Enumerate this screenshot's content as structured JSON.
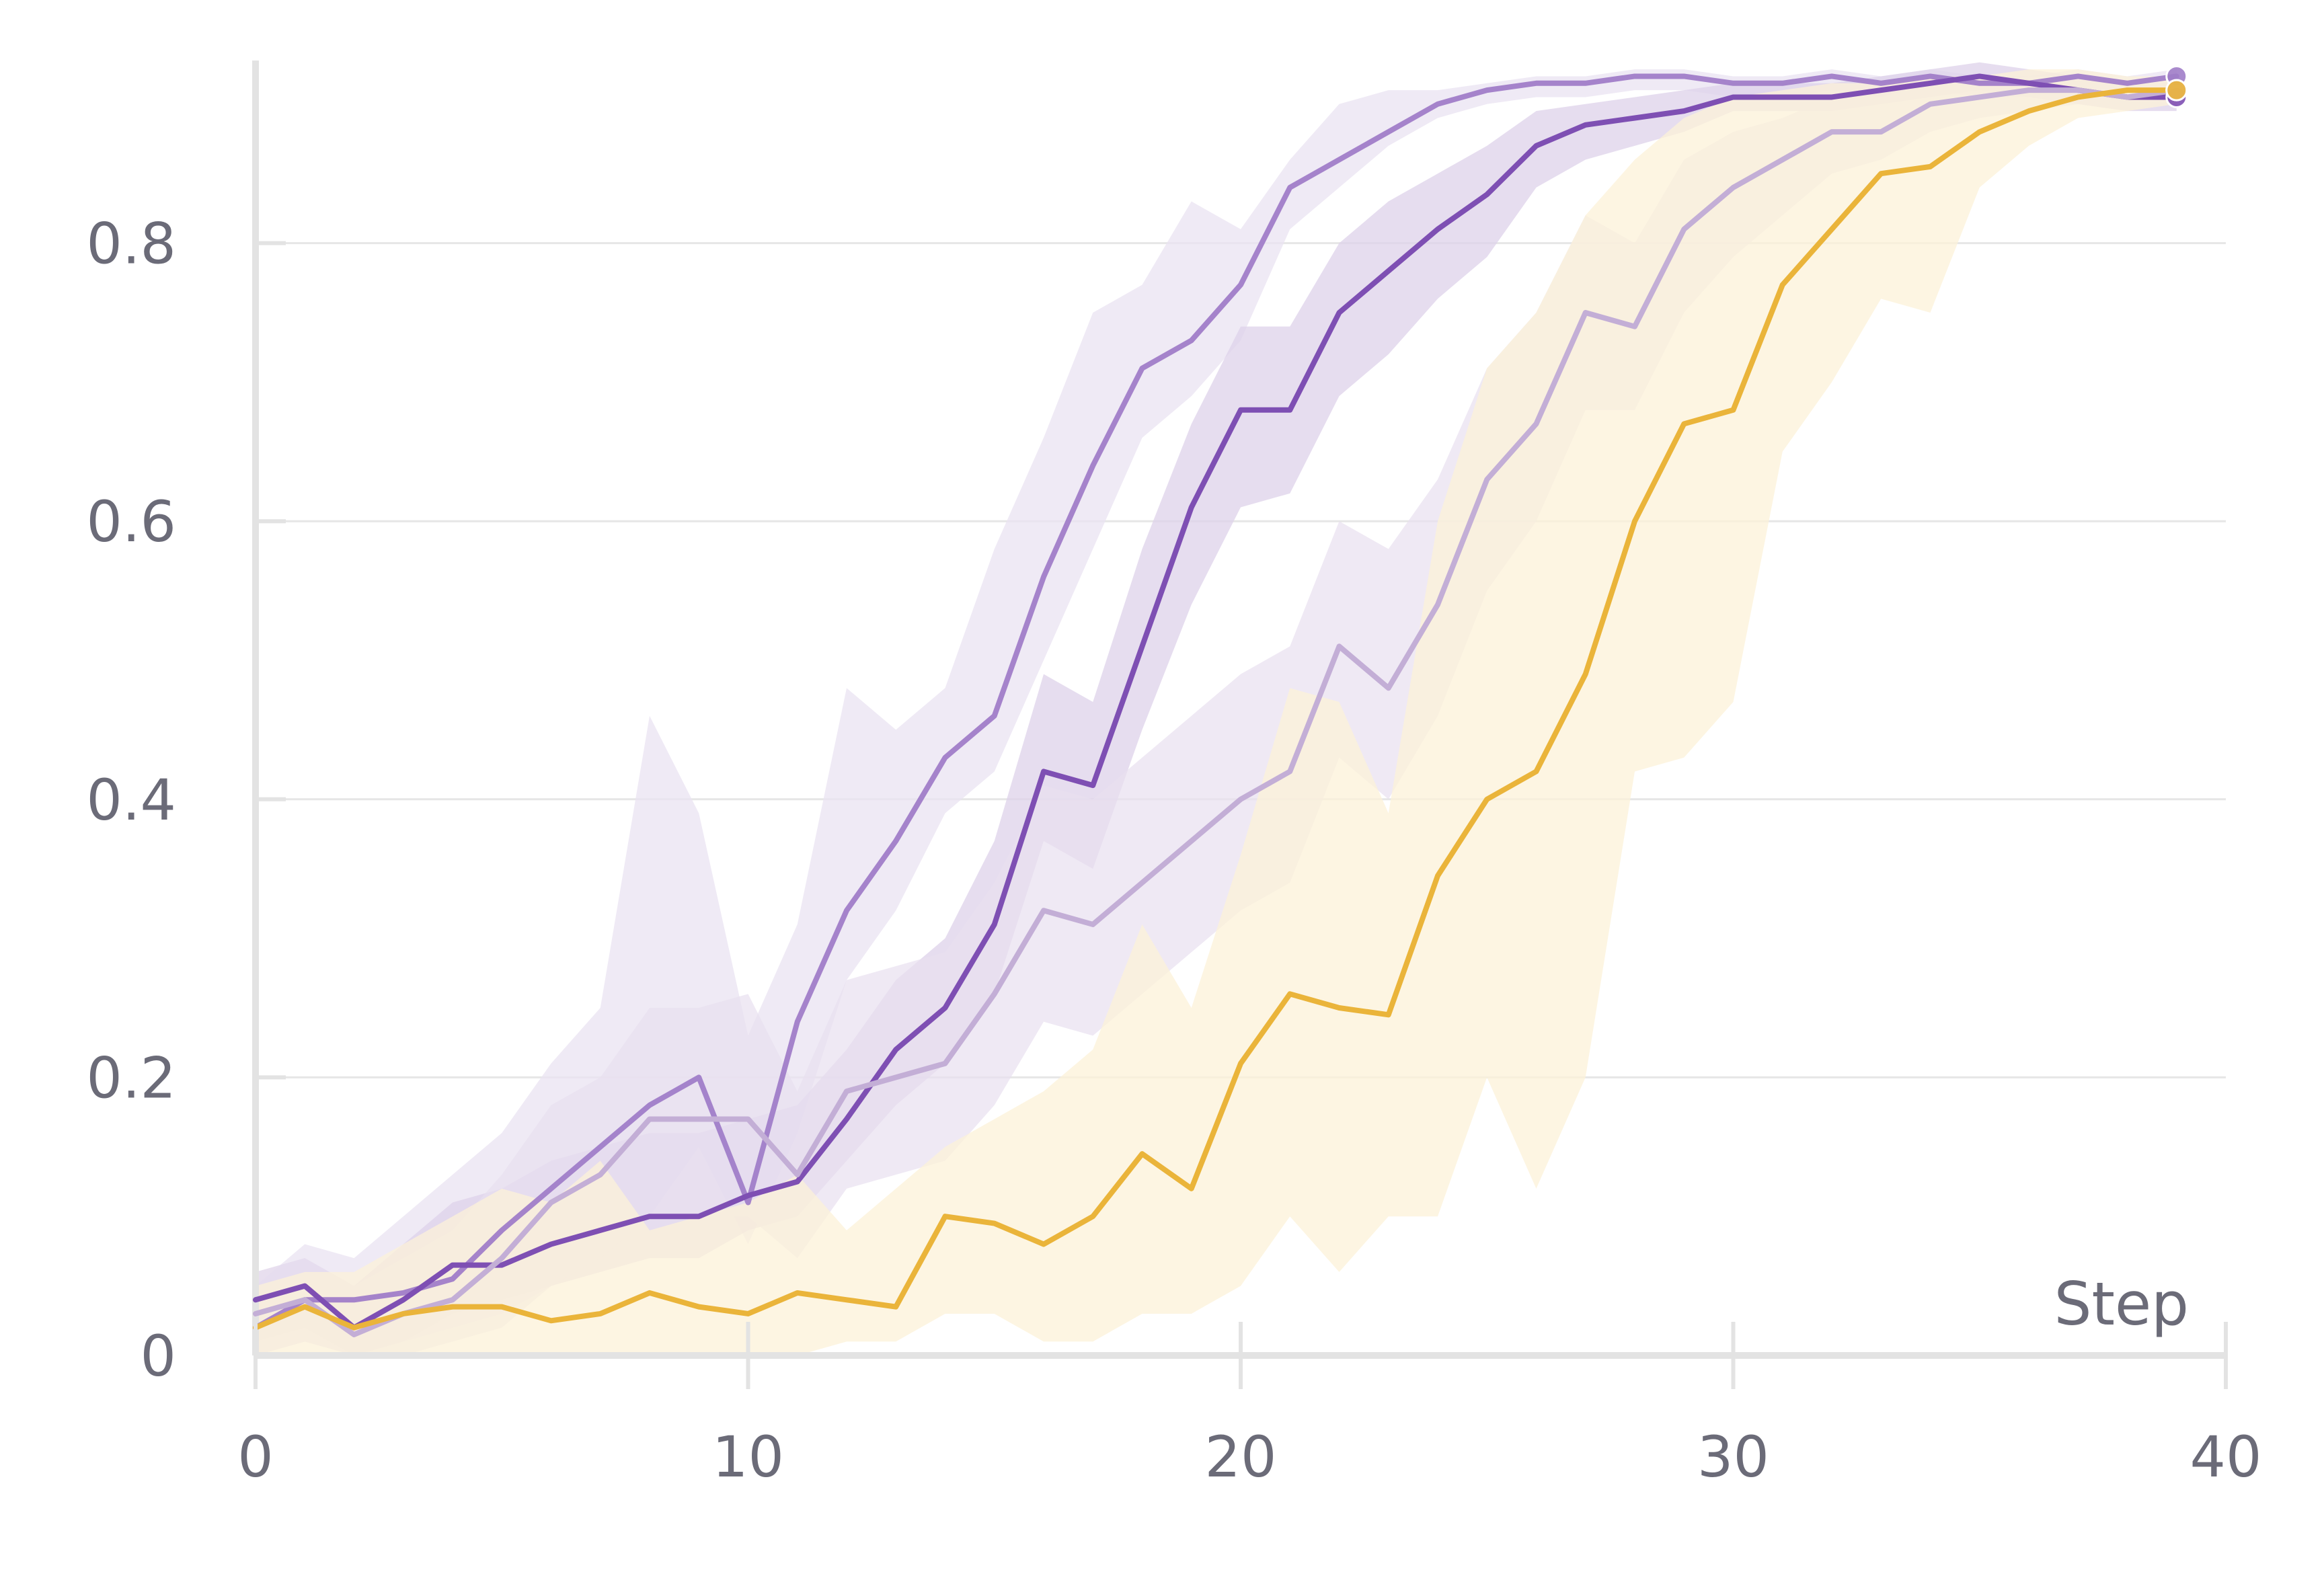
{
  "chart_data": {
    "type": "line",
    "title": "",
    "xlabel": "Step",
    "ylabel": "",
    "xlim": [
      0,
      40
    ],
    "ylim": [
      0,
      0.92
    ],
    "x_ticks": [
      0,
      10,
      20,
      30,
      40
    ],
    "y_ticks": [
      0,
      0.2,
      0.4,
      0.6,
      0.8
    ],
    "x_tick_labels": [
      "0",
      "10",
      "20",
      "30",
      "40"
    ],
    "y_tick_labels": [
      "0",
      "0.2",
      "0.4",
      "0.6",
      "0.8"
    ],
    "grid": "horizontal",
    "legend": "none",
    "x": [
      0,
      1,
      2,
      3,
      4,
      5,
      6,
      7,
      8,
      9,
      10,
      11,
      12,
      13,
      14,
      15,
      16,
      17,
      18,
      19,
      20,
      21,
      22,
      23,
      24,
      25,
      26,
      27,
      28,
      29,
      30,
      31,
      32,
      33,
      34,
      35,
      36,
      37,
      38,
      39
    ],
    "series": [
      {
        "color": "#a07dc8",
        "band_color": "#e9e3f2",
        "line_opacity": 0.95,
        "band_opacity": 0.75,
        "values": [
          0.02,
          0.04,
          0.04,
          0.045,
          0.055,
          0.09,
          0.12,
          0.15,
          0.18,
          0.2,
          0.11,
          0.24,
          0.32,
          0.37,
          0.43,
          0.46,
          0.56,
          0.64,
          0.71,
          0.73,
          0.77,
          0.84,
          0.86,
          0.88,
          0.9,
          0.91,
          0.915,
          0.915,
          0.92,
          0.92,
          0.915,
          0.915,
          0.92,
          0.915,
          0.92,
          0.915,
          0.915,
          0.92,
          0.915,
          0.92
        ],
        "lower": [
          0.0,
          0.01,
          0.0,
          0.01,
          0.02,
          0.03,
          0.05,
          0.07,
          0.1,
          0.15,
          0.08,
          0.16,
          0.27,
          0.32,
          0.39,
          0.42,
          0.5,
          0.58,
          0.66,
          0.69,
          0.73,
          0.81,
          0.84,
          0.87,
          0.89,
          0.9,
          0.905,
          0.905,
          0.91,
          0.91,
          0.905,
          0.905,
          0.91,
          0.905,
          0.91,
          0.905,
          0.905,
          0.91,
          0.905,
          0.91
        ],
        "upper": [
          0.05,
          0.08,
          0.07,
          0.1,
          0.13,
          0.16,
          0.21,
          0.25,
          0.46,
          0.39,
          0.23,
          0.31,
          0.48,
          0.45,
          0.48,
          0.58,
          0.66,
          0.75,
          0.77,
          0.83,
          0.81,
          0.86,
          0.9,
          0.91,
          0.91,
          0.915,
          0.92,
          0.92,
          0.925,
          0.925,
          0.92,
          0.92,
          0.925,
          0.92,
          0.925,
          0.92,
          0.92,
          0.925,
          0.92,
          0.925
        ]
      },
      {
        "color": "#7e4fb3",
        "band_color": "#ddd2ea",
        "line_opacity": 1,
        "band_opacity": 0.75,
        "values": [
          0.04,
          0.05,
          0.02,
          0.04,
          0.065,
          0.065,
          0.08,
          0.09,
          0.1,
          0.1,
          0.115,
          0.125,
          0.17,
          0.22,
          0.25,
          0.31,
          0.42,
          0.41,
          0.51,
          0.61,
          0.68,
          0.68,
          0.75,
          0.78,
          0.81,
          0.835,
          0.87,
          0.885,
          0.89,
          0.895,
          0.905,
          0.905,
          0.905,
          0.91,
          0.915,
          0.92,
          0.915,
          0.91,
          0.905,
          0.905
        ],
        "lower": [
          0.01,
          0.02,
          0.0,
          0.01,
          0.03,
          0.04,
          0.05,
          0.06,
          0.07,
          0.07,
          0.09,
          0.1,
          0.14,
          0.18,
          0.21,
          0.26,
          0.37,
          0.35,
          0.45,
          0.54,
          0.61,
          0.62,
          0.69,
          0.72,
          0.76,
          0.79,
          0.84,
          0.86,
          0.87,
          0.88,
          0.895,
          0.895,
          0.895,
          0.9,
          0.905,
          0.91,
          0.905,
          0.9,
          0.895,
          0.895
        ],
        "upper": [
          0.06,
          0.07,
          0.05,
          0.08,
          0.11,
          0.12,
          0.14,
          0.15,
          0.16,
          0.16,
          0.17,
          0.18,
          0.22,
          0.27,
          0.3,
          0.37,
          0.49,
          0.47,
          0.58,
          0.67,
          0.74,
          0.74,
          0.8,
          0.83,
          0.85,
          0.87,
          0.895,
          0.9,
          0.905,
          0.91,
          0.915,
          0.915,
          0.915,
          0.92,
          0.925,
          0.93,
          0.925,
          0.92,
          0.915,
          0.915
        ]
      },
      {
        "color": "#c3aed6",
        "band_color": "#e8dfef",
        "line_opacity": 1,
        "band_opacity": 0.7,
        "values": [
          0.03,
          0.04,
          0.015,
          0.03,
          0.04,
          0.07,
          0.11,
          0.13,
          0.17,
          0.17,
          0.17,
          0.13,
          0.19,
          0.2,
          0.21,
          0.26,
          0.32,
          0.31,
          0.34,
          0.37,
          0.4,
          0.42,
          0.51,
          0.48,
          0.54,
          0.63,
          0.67,
          0.75,
          0.74,
          0.81,
          0.84,
          0.86,
          0.88,
          0.88,
          0.9,
          0.905,
          0.91,
          0.91,
          0.905,
          0.91
        ],
        "lower": [
          0.0,
          0.01,
          0.0,
          0.0,
          0.01,
          0.02,
          0.05,
          0.07,
          0.1,
          0.1,
          0.1,
          0.07,
          0.12,
          0.13,
          0.14,
          0.18,
          0.24,
          0.23,
          0.26,
          0.29,
          0.32,
          0.34,
          0.43,
          0.4,
          0.46,
          0.55,
          0.6,
          0.68,
          0.68,
          0.75,
          0.79,
          0.82,
          0.85,
          0.86,
          0.88,
          0.89,
          0.895,
          0.9,
          0.895,
          0.9
        ],
        "upper": [
          0.06,
          0.07,
          0.05,
          0.07,
          0.09,
          0.13,
          0.18,
          0.2,
          0.25,
          0.25,
          0.26,
          0.19,
          0.27,
          0.28,
          0.29,
          0.34,
          0.41,
          0.4,
          0.43,
          0.46,
          0.49,
          0.51,
          0.6,
          0.58,
          0.63,
          0.71,
          0.75,
          0.82,
          0.8,
          0.86,
          0.88,
          0.89,
          0.905,
          0.905,
          0.915,
          0.915,
          0.92,
          0.92,
          0.915,
          0.92
        ]
      },
      {
        "color": "#eab43a",
        "band_color": "#fcf1d8",
        "line_opacity": 1,
        "band_opacity": 0.75,
        "values": [
          0.02,
          0.035,
          0.02,
          0.03,
          0.035,
          0.035,
          0.025,
          0.03,
          0.045,
          0.035,
          0.03,
          0.045,
          0.04,
          0.035,
          0.1,
          0.095,
          0.08,
          0.1,
          0.145,
          0.12,
          0.21,
          0.26,
          0.25,
          0.245,
          0.345,
          0.4,
          0.42,
          0.49,
          0.6,
          0.67,
          0.68,
          0.77,
          0.81,
          0.85,
          0.855,
          0.88,
          0.895,
          0.905,
          0.91,
          0.91
        ],
        "lower": [
          0.0,
          0.0,
          0.0,
          0.0,
          0.0,
          0.0,
          0.0,
          0.0,
          0.0,
          0.0,
          0.0,
          0.0,
          0.01,
          0.01,
          0.03,
          0.03,
          0.01,
          0.01,
          0.03,
          0.03,
          0.05,
          0.1,
          0.06,
          0.1,
          0.1,
          0.2,
          0.12,
          0.2,
          0.42,
          0.43,
          0.47,
          0.65,
          0.7,
          0.76,
          0.75,
          0.84,
          0.87,
          0.89,
          0.895,
          0.9
        ],
        "upper": [
          0.05,
          0.06,
          0.06,
          0.08,
          0.1,
          0.12,
          0.11,
          0.14,
          0.09,
          0.1,
          0.11,
          0.13,
          0.09,
          0.12,
          0.15,
          0.17,
          0.19,
          0.22,
          0.31,
          0.25,
          0.36,
          0.48,
          0.47,
          0.39,
          0.6,
          0.71,
          0.75,
          0.82,
          0.86,
          0.89,
          0.905,
          0.91,
          0.915,
          0.915,
          0.92,
          0.92,
          0.925,
          0.925,
          0.92,
          0.92
        ]
      }
    ]
  }
}
